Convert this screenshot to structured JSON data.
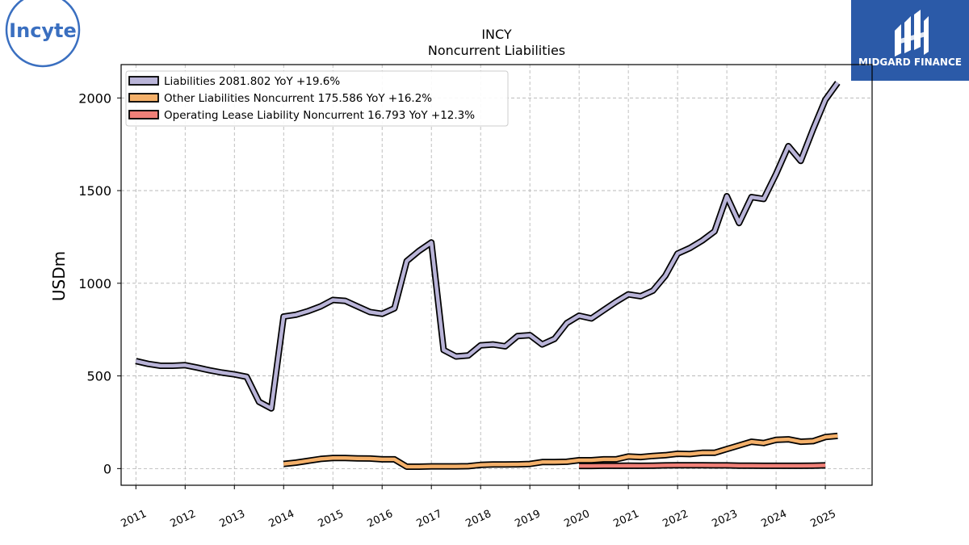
{
  "header": {
    "company_logo_text": "Incyte",
    "brand_name": "MIDGARD FINANCE"
  },
  "colors": {
    "brand_bg": "#2b5aa8",
    "company_logo": "#3a6fc0",
    "grid": "#b0b0b0"
  },
  "chart_data": {
    "type": "line",
    "title": "INCY",
    "subtitle": "Noncurrent  Liabilities",
    "ylabel": "USDm",
    "xlabel": "",
    "xlim": [
      2010.7,
      2025.95
    ],
    "ylim": [
      -90,
      2180
    ],
    "yticks": [
      0,
      500,
      1000,
      1500,
      2000
    ],
    "xticks": [
      "2011",
      "2012",
      "2013",
      "2014",
      "2015",
      "2016",
      "2017",
      "2018",
      "2019",
      "2020",
      "2021",
      "2022",
      "2023",
      "2024",
      "2025"
    ],
    "grid": true,
    "legend_position": "top-left",
    "series": [
      {
        "name": "Liabilities",
        "legend": "Liabilities  2081.802 YoY +19.6%",
        "color": "#b9b4d8",
        "x": [
          2011.0,
          2011.25,
          2011.5,
          2011.75,
          2012.0,
          2012.25,
          2012.5,
          2012.75,
          2013.0,
          2013.25,
          2013.5,
          2013.75,
          2014.0,
          2014.25,
          2014.5,
          2014.75,
          2015.0,
          2015.25,
          2015.5,
          2015.75,
          2016.0,
          2016.25,
          2016.5,
          2016.75,
          2017.0,
          2017.25,
          2017.5,
          2017.75,
          2018.0,
          2018.25,
          2018.5,
          2018.75,
          2019.0,
          2019.25,
          2019.5,
          2019.75,
          2020.0,
          2020.25,
          2020.5,
          2020.75,
          2021.0,
          2021.25,
          2021.5,
          2021.75,
          2022.0,
          2022.25,
          2022.5,
          2022.75,
          2023.0,
          2023.25,
          2023.5,
          2023.75,
          2024.0,
          2024.25,
          2024.5,
          2024.75,
          2025.0,
          2025.25
        ],
        "values": [
          580,
          565,
          555,
          555,
          558,
          545,
          530,
          518,
          508,
          495,
          360,
          325,
          820,
          830,
          850,
          875,
          910,
          905,
          875,
          845,
          835,
          865,
          1120,
          1175,
          1220,
          640,
          605,
          610,
          665,
          670,
          660,
          715,
          720,
          670,
          700,
          785,
          825,
          810,
          855,
          900,
          940,
          930,
          960,
          1040,
          1160,
          1190,
          1230,
          1280,
          1470,
          1325,
          1465,
          1455,
          1590,
          1740,
          1660,
          1830,
          1990,
          2082
        ]
      },
      {
        "name": "Other Liabilities Noncurrent",
        "legend": "Other Liabilities Noncurrent  175.586 YoY +16.2%",
        "color": "#f4b06a",
        "x": [
          2014.0,
          2014.25,
          2014.5,
          2014.75,
          2015.0,
          2015.25,
          2015.5,
          2015.75,
          2016.0,
          2016.25,
          2016.5,
          2016.75,
          2017.0,
          2017.25,
          2017.5,
          2017.75,
          2018.0,
          2018.25,
          2018.5,
          2018.75,
          2019.0,
          2019.25,
          2019.5,
          2019.75,
          2020.0,
          2020.25,
          2020.5,
          2020.75,
          2021.0,
          2021.25,
          2021.5,
          2021.75,
          2022.0,
          2022.25,
          2022.5,
          2022.75,
          2023.0,
          2023.25,
          2023.5,
          2023.75,
          2024.0,
          2024.25,
          2024.5,
          2024.75,
          2025.0,
          2025.25
        ],
        "values": [
          25,
          32,
          42,
          52,
          57,
          57,
          55,
          54,
          50,
          50,
          10,
          10,
          12,
          12,
          12,
          13,
          20,
          22,
          22,
          23,
          25,
          35,
          35,
          37,
          45,
          45,
          50,
          50,
          65,
          62,
          68,
          72,
          80,
          78,
          85,
          85,
          105,
          125,
          145,
          138,
          155,
          158,
          145,
          148,
          170,
          176
        ]
      },
      {
        "name": "Operating Lease Liability Noncurrent",
        "legend": "Operating Lease Liability Noncurrent  16.793 YoY +12.3%",
        "color": "#f08078",
        "x": [
          2020.0,
          2020.25,
          2020.5,
          2020.75,
          2021.0,
          2021.25,
          2021.5,
          2021.75,
          2022.0,
          2022.25,
          2022.5,
          2022.75,
          2023.0,
          2023.25,
          2023.5,
          2023.75,
          2024.0,
          2024.25,
          2024.5,
          2024.75,
          2025.0
        ],
        "values": [
          14,
          14,
          15,
          15,
          16,
          15,
          16,
          17,
          18,
          18,
          18,
          17,
          17,
          16,
          16,
          15,
          15,
          15,
          15,
          16,
          17
        ]
      }
    ]
  }
}
